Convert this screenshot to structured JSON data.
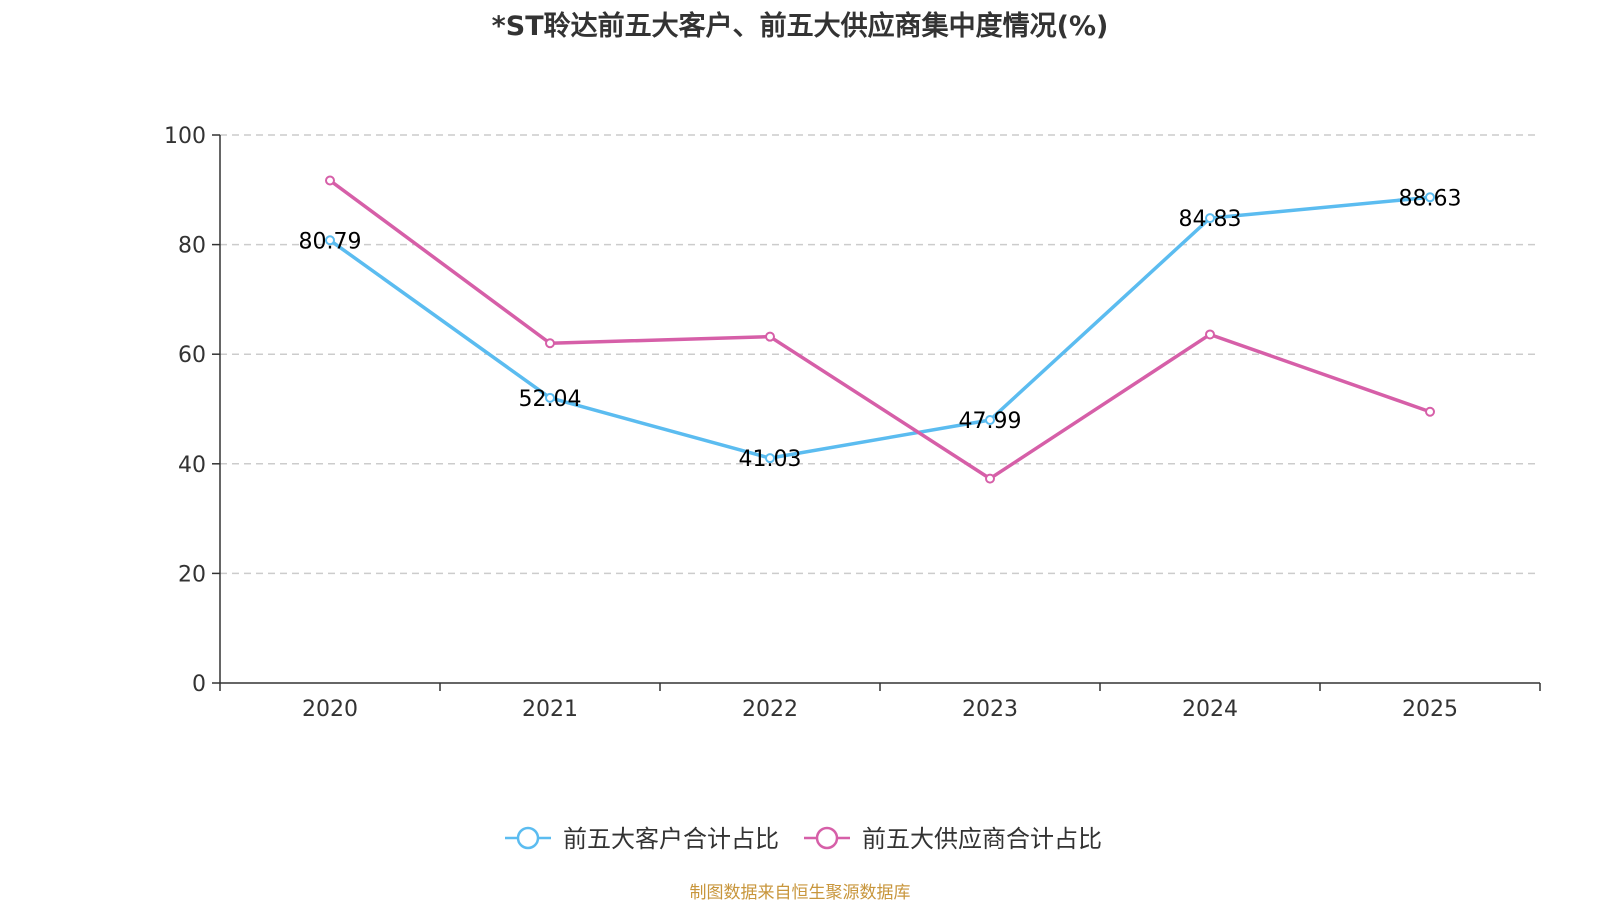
{
  "chart_data": {
    "type": "line",
    "title": "*ST聆达前五大客户、前五大供应商集中度情况(%)",
    "categories": [
      "2020",
      "2021",
      "2022",
      "2023",
      "2024",
      "2025"
    ],
    "ylim": [
      0,
      100
    ],
    "yticks": [
      0,
      20,
      40,
      60,
      80,
      100
    ],
    "grid": true,
    "legend_position": "bottom-center",
    "series": [
      {
        "name": "前五大客户合计占比",
        "color": "#5bbcf0",
        "values": [
          80.79,
          52.04,
          41.03,
          47.99,
          84.83,
          88.63
        ],
        "show_labels": true,
        "label_text": [
          "80.79",
          "52.04",
          "41.03",
          "47.99",
          "84.83",
          "88.63"
        ]
      },
      {
        "name": "前五大供应商合计占比",
        "color": "#d65fa8",
        "values": [
          91.7,
          62.0,
          63.2,
          37.3,
          63.6,
          49.5
        ],
        "show_labels": false
      }
    ],
    "source": "制图数据来自恒生聚源数据库"
  }
}
